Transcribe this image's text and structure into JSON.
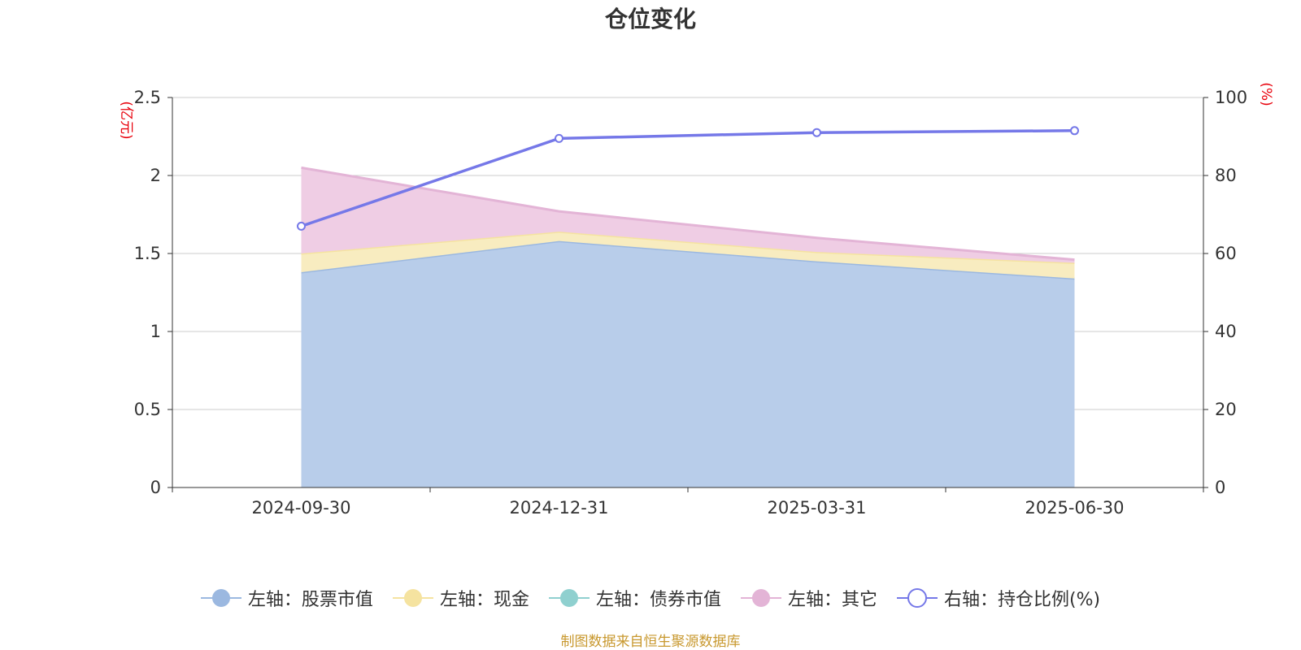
{
  "chart_data": {
    "type": "area",
    "title": "仓位变化",
    "categories": [
      "2024-09-30",
      "2024-12-31",
      "2025-03-31",
      "2025-06-30"
    ],
    "left_axis": {
      "unit_label": "(亿元)",
      "ylim": [
        0,
        2.5
      ],
      "ticks": [
        "0",
        "0.5",
        "1",
        "1.5",
        "2",
        "2.5"
      ]
    },
    "right_axis": {
      "unit_label": "(%)",
      "ylim": [
        0,
        100
      ],
      "ticks": [
        "0",
        "20",
        "40",
        "60",
        "80",
        "100"
      ]
    },
    "series": [
      {
        "name": "左轴：股票市值",
        "axis": "left",
        "stacked": true,
        "color": "#9bb8e0",
        "fill": "#b8cdea",
        "values": [
          1.38,
          1.58,
          1.45,
          1.34
        ]
      },
      {
        "name": "左轴：现金",
        "axis": "left",
        "stacked": true,
        "color": "#f5e3a0",
        "fill": "#f8ecc0",
        "values": [
          0.12,
          0.06,
          0.06,
          0.1
        ]
      },
      {
        "name": "左轴：债券市值",
        "axis": "left",
        "stacked": true,
        "color": "#8fd0cf",
        "fill": "#b4e0df",
        "values": [
          0,
          0,
          0,
          0
        ]
      },
      {
        "name": "左轴：其它",
        "axis": "left",
        "stacked": true,
        "color": "#e3b4d6",
        "fill": "#efcde4",
        "values": [
          0.55,
          0.13,
          0.09,
          0.02
        ]
      },
      {
        "name": "右轴：持仓比例(%)",
        "axis": "right",
        "type": "line",
        "color": "#7578e8",
        "values": [
          67,
          89.5,
          91,
          91.5
        ]
      }
    ],
    "grid": true,
    "legend_position": "bottom"
  },
  "source_note": "制图数据来自恒生聚源数据库"
}
